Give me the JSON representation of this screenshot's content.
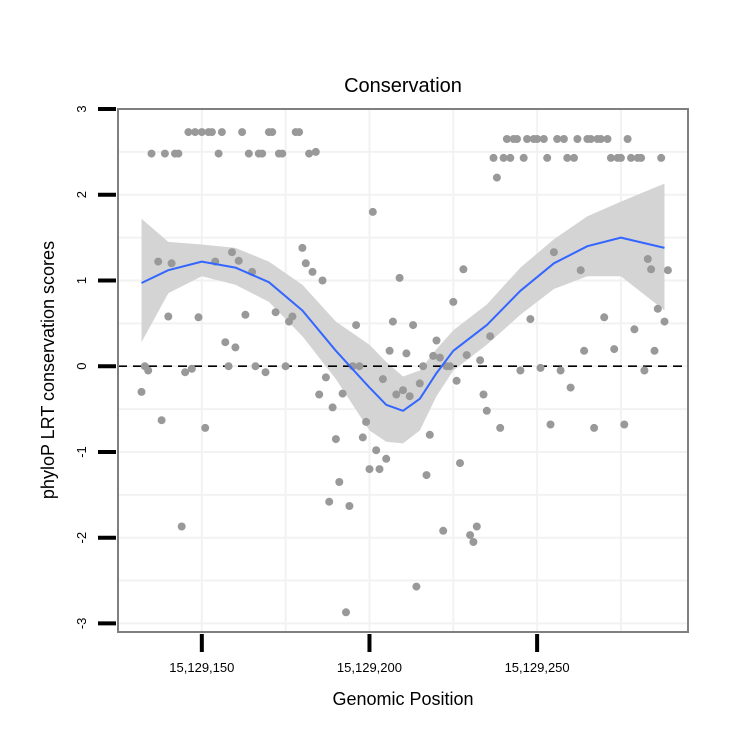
{
  "chart_data": {
    "type": "scatter",
    "title": "Conservation",
    "xlabel": "Genomic Position",
    "ylabel": "phyloP LRT conservation scores",
    "xlim": [
      15129125,
      15129295
    ],
    "ylim": [
      -3.1,
      3.0
    ],
    "xticks": [
      15129150,
      15129200,
      15129250
    ],
    "xtick_labels": [
      "15,129,150",
      "15,129,200",
      "15,129,250"
    ],
    "yticks": [
      -3,
      -2,
      -1,
      0,
      1,
      2,
      3
    ],
    "ytick_labels": [
      "-3",
      "-2",
      "-1",
      "0",
      "1",
      "2",
      "3"
    ],
    "reference_line": {
      "y": 0,
      "style": "dashed"
    },
    "points": [
      [
        15129132,
        -0.3
      ],
      [
        15129133,
        0.0
      ],
      [
        15129134,
        -0.05
      ],
      [
        15129135,
        2.48
      ],
      [
        15129137,
        1.22
      ],
      [
        15129138,
        -0.63
      ],
      [
        15129139,
        2.48
      ],
      [
        15129140,
        0.58
      ],
      [
        15129141,
        1.2
      ],
      [
        15129142,
        2.48
      ],
      [
        15129143,
        2.48
      ],
      [
        15129144,
        -1.87
      ],
      [
        15129145,
        -0.07
      ],
      [
        15129146,
        2.73
      ],
      [
        15129147,
        -0.03
      ],
      [
        15129148,
        2.73
      ],
      [
        15129149,
        0.57
      ],
      [
        15129150,
        2.73
      ],
      [
        15129151,
        -0.72
      ],
      [
        15129152,
        2.73
      ],
      [
        15129153,
        2.73
      ],
      [
        15129154,
        1.22
      ],
      [
        15129155,
        2.48
      ],
      [
        15129156,
        2.73
      ],
      [
        15129157,
        0.28
      ],
      [
        15129158,
        0.0
      ],
      [
        15129159,
        1.33
      ],
      [
        15129160,
        0.22
      ],
      [
        15129161,
        1.23
      ],
      [
        15129162,
        2.73
      ],
      [
        15129163,
        0.6
      ],
      [
        15129164,
        2.48
      ],
      [
        15129165,
        1.1
      ],
      [
        15129166,
        0.0
      ],
      [
        15129167,
        2.48
      ],
      [
        15129168,
        2.48
      ],
      [
        15129169,
        -0.07
      ],
      [
        15129170,
        2.73
      ],
      [
        15129171,
        2.73
      ],
      [
        15129172,
        0.63
      ],
      [
        15129173,
        2.48
      ],
      [
        15129174,
        2.48
      ],
      [
        15129175,
        0.0
      ],
      [
        15129176,
        0.52
      ],
      [
        15129177,
        0.58
      ],
      [
        15129178,
        2.73
      ],
      [
        15129179,
        2.73
      ],
      [
        15129180,
        1.38
      ],
      [
        15129181,
        1.2
      ],
      [
        15129182,
        2.48
      ],
      [
        15129183,
        1.1
      ],
      [
        15129184,
        2.5
      ],
      [
        15129185,
        -0.33
      ],
      [
        15129186,
        1.0
      ],
      [
        15129187,
        -0.13
      ],
      [
        15129188,
        -1.58
      ],
      [
        15129189,
        -0.48
      ],
      [
        15129190,
        -0.85
      ],
      [
        15129191,
        -1.35
      ],
      [
        15129192,
        -0.32
      ],
      [
        15129193,
        -2.87
      ],
      [
        15129194,
        -1.63
      ],
      [
        15129195,
        0.0
      ],
      [
        15129196,
        0.48
      ],
      [
        15129197,
        0.0
      ],
      [
        15129198,
        -0.83
      ],
      [
        15129199,
        -0.65
      ],
      [
        15129200,
        -1.2
      ],
      [
        15129201,
        1.8
      ],
      [
        15129202,
        -0.98
      ],
      [
        15129203,
        -1.2
      ],
      [
        15129204,
        -0.15
      ],
      [
        15129205,
        -1.08
      ],
      [
        15129206,
        0.18
      ],
      [
        15129207,
        0.52
      ],
      [
        15129208,
        -0.33
      ],
      [
        15129209,
        1.03
      ],
      [
        15129210,
        -0.28
      ],
      [
        15129211,
        0.15
      ],
      [
        15129212,
        -0.35
      ],
      [
        15129213,
        0.48
      ],
      [
        15129214,
        -2.57
      ],
      [
        15129215,
        -0.2
      ],
      [
        15129216,
        0.0
      ],
      [
        15129217,
        -1.27
      ],
      [
        15129218,
        -0.8
      ],
      [
        15129219,
        0.12
      ],
      [
        15129220,
        0.3
      ],
      [
        15129221,
        0.1
      ],
      [
        15129222,
        -1.92
      ],
      [
        15129223,
        0.0
      ],
      [
        15129224,
        0.0
      ],
      [
        15129225,
        0.75
      ],
      [
        15129226,
        -0.17
      ],
      [
        15129227,
        -1.13
      ],
      [
        15129228,
        1.13
      ],
      [
        15129229,
        0.13
      ],
      [
        15129230,
        -1.97
      ],
      [
        15129231,
        -2.05
      ],
      [
        15129232,
        -1.87
      ],
      [
        15129233,
        0.07
      ],
      [
        15129234,
        -0.33
      ],
      [
        15129235,
        -0.52
      ],
      [
        15129236,
        0.35
      ],
      [
        15129237,
        2.43
      ],
      [
        15129238,
        2.2
      ],
      [
        15129239,
        -0.72
      ],
      [
        15129240,
        2.43
      ],
      [
        15129241,
        2.65
      ],
      [
        15129242,
        2.43
      ],
      [
        15129243,
        2.65
      ],
      [
        15129244,
        2.65
      ],
      [
        15129245,
        -0.05
      ],
      [
        15129246,
        2.43
      ],
      [
        15129247,
        2.65
      ],
      [
        15129248,
        0.55
      ],
      [
        15129249,
        2.65
      ],
      [
        15129250,
        2.65
      ],
      [
        15129251,
        -0.02
      ],
      [
        15129252,
        2.65
      ],
      [
        15129253,
        2.43
      ],
      [
        15129254,
        -0.68
      ],
      [
        15129255,
        1.33
      ],
      [
        15129256,
        2.65
      ],
      [
        15129257,
        -0.05
      ],
      [
        15129258,
        2.65
      ],
      [
        15129259,
        2.43
      ],
      [
        15129260,
        -0.25
      ],
      [
        15129261,
        2.43
      ],
      [
        15129262,
        2.65
      ],
      [
        15129263,
        1.12
      ],
      [
        15129264,
        0.18
      ],
      [
        15129265,
        2.65
      ],
      [
        15129266,
        2.65
      ],
      [
        15129267,
        -0.72
      ],
      [
        15129268,
        2.65
      ],
      [
        15129269,
        2.65
      ],
      [
        15129270,
        0.57
      ],
      [
        15129271,
        2.65
      ],
      [
        15129272,
        2.43
      ],
      [
        15129273,
        0.2
      ],
      [
        15129274,
        2.43
      ],
      [
        15129275,
        2.43
      ],
      [
        15129276,
        -0.68
      ],
      [
        15129277,
        2.65
      ],
      [
        15129278,
        2.43
      ],
      [
        15129279,
        0.43
      ],
      [
        15129280,
        2.43
      ],
      [
        15129281,
        2.43
      ],
      [
        15129282,
        -0.05
      ],
      [
        15129283,
        1.25
      ],
      [
        15129284,
        1.13
      ],
      [
        15129285,
        0.18
      ],
      [
        15129286,
        0.67
      ],
      [
        15129287,
        2.43
      ],
      [
        15129288,
        0.52
      ],
      [
        15129289,
        1.12
      ]
    ],
    "smooth": {
      "method": "loess",
      "x": [
        15129132,
        15129140,
        15129150,
        15129160,
        15129170,
        15129180,
        15129190,
        15129200,
        15129205,
        15129210,
        15129215,
        15129220,
        15129225,
        15129235,
        15129245,
        15129255,
        15129265,
        15129275,
        15129288
      ],
      "y": [
        0.97,
        1.12,
        1.22,
        1.15,
        0.98,
        0.65,
        0.18,
        -0.25,
        -0.45,
        -0.52,
        -0.38,
        -0.08,
        0.18,
        0.48,
        0.88,
        1.2,
        1.4,
        1.5,
        1.38
      ],
      "lower": [
        0.28,
        0.85,
        1.05,
        0.95,
        0.75,
        0.35,
        -0.15,
        -0.75,
        -0.88,
        -0.9,
        -0.75,
        -0.35,
        -0.05,
        0.25,
        0.6,
        0.9,
        1.05,
        1.05,
        0.65
      ],
      "upper": [
        1.72,
        1.45,
        1.42,
        1.38,
        1.22,
        0.95,
        0.52,
        0.25,
        0.05,
        -0.12,
        -0.05,
        0.2,
        0.42,
        0.72,
        1.15,
        1.48,
        1.75,
        1.92,
        2.13
      ]
    }
  }
}
